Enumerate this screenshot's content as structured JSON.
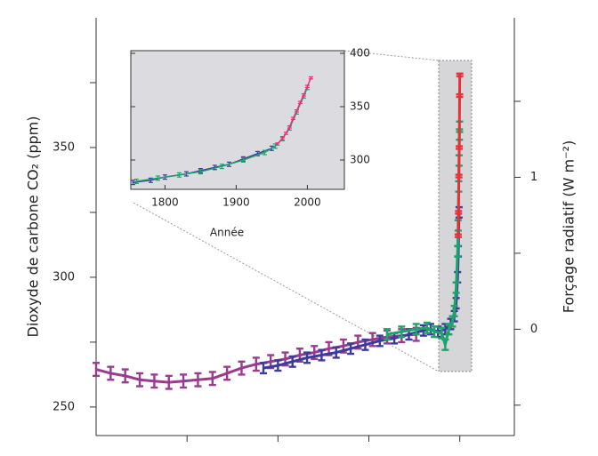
{
  "chart_data": [
    {
      "type": "line",
      "ylabel": "Dioxyde de carbone CO₂ (ppm)",
      "y2label": "Forçage radiatif (W m⁻²)",
      "xlim": [
        10000,
        -1500
      ],
      "ylim": [
        239,
        400
      ],
      "yticks": [
        250,
        300,
        350
      ],
      "yminorticks": [
        275,
        325,
        375
      ],
      "y2lim": [
        -0.7,
        2.05
      ],
      "y2ticks": [
        0,
        1
      ],
      "y2minorticks": [
        -0.5,
        0.5,
        1.5
      ],
      "xtickmarks": [
        7500,
        5000,
        2500,
        0
      ],
      "series": [
        {
          "color": "#9b3b8f",
          "error": 2.5,
          "x": [
            10000,
            9600,
            9200,
            8800,
            8400,
            8000,
            7600,
            7200,
            6800,
            6400,
            6000,
            5600,
            5200,
            4800,
            4400,
            4000,
            3600,
            3200,
            2800,
            2400,
            2000,
            1600,
            1200
          ],
          "values": [
            264.5,
            263,
            262,
            260.5,
            260,
            259.5,
            260,
            260.5,
            261,
            263,
            265,
            266.5,
            267.5,
            268.5,
            270,
            271,
            272.5,
            273.5,
            275,
            276,
            277,
            277.5,
            278
          ]
        },
        {
          "color": "#3b3b9e",
          "error": 2,
          "x": [
            5400,
            5000,
            4600,
            4200,
            3800,
            3400,
            3000,
            2600,
            2200,
            1800,
            1400,
            1000,
            800,
            600,
            400,
            250,
            150,
            100,
            60,
            40,
            20
          ],
          "values": [
            265,
            266,
            267.5,
            269,
            270,
            271,
            272.5,
            274,
            275.5,
            276.5,
            278,
            279.5,
            280,
            279,
            280,
            282,
            285,
            290,
            300,
            310,
            325
          ]
        },
        {
          "color": "#1fa36a",
          "error": 2,
          "x": [
            2000,
            1600,
            1200,
            900,
            700,
            500,
            400,
            300,
            200,
            150,
            100,
            60,
            45,
            30,
            20,
            10,
            5
          ],
          "values": [
            278,
            279,
            280,
            280.5,
            279,
            278.5,
            274,
            280,
            283,
            287,
            296,
            310,
            320,
            335,
            345,
            355,
            358
          ]
        },
        {
          "color": "#e8303a",
          "error": 0.5,
          "x": [
            45,
            35,
            25,
            15,
            5,
            0
          ],
          "values": [
            316,
            325,
            339,
            350,
            370,
            378
          ]
        }
      ]
    },
    {
      "type": "line",
      "xlabel": "Année",
      "xlim": [
        1752,
        2052
      ],
      "ylim": [
        272.5,
        402.5
      ],
      "xticks": [
        1800,
        1900,
        2000
      ],
      "yticks": [
        300,
        350,
        400
      ],
      "series": [
        {
          "color": "#3b3b9e",
          "error": 2,
          "x": [
            1755,
            1780,
            1800,
            1830,
            1850,
            1870,
            1890,
            1910,
            1930,
            1950
          ],
          "values": [
            279,
            281,
            284,
            287,
            290,
            293,
            296,
            301,
            306,
            311
          ]
        },
        {
          "color": "#1fa36a",
          "error": 2,
          "x": [
            1760,
            1790,
            1820,
            1850,
            1880,
            1910,
            1940,
            1955,
            1965,
            1975,
            1985,
            1995,
            2000
          ],
          "values": [
            280,
            283,
            286,
            289,
            294,
            300,
            307,
            313,
            320,
            330,
            345,
            360,
            368
          ]
        },
        {
          "color": "#e8307a",
          "error": 1,
          "x": [
            1958,
            1965,
            1970,
            1975,
            1980,
            1985,
            1990,
            1995,
            2000,
            2005
          ],
          "values": [
            315,
            320,
            325,
            331,
            339,
            346,
            354,
            361,
            369,
            377
          ]
        }
      ]
    }
  ]
}
